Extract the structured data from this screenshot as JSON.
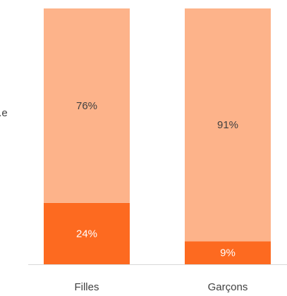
{
  "chart_data": {
    "type": "stacked-bar",
    "annotation": "t.e",
    "categories": [
      "Filles",
      "Garçons"
    ],
    "series": [
      {
        "name": null,
        "color": "#fd6a20",
        "label_color": "#ffffff",
        "values": [
          24,
          9
        ],
        "value_labels": [
          "24%",
          "9%"
        ]
      },
      {
        "name": null,
        "color": "#fdb38a",
        "label_color": "#404040",
        "values": [
          76,
          91
        ],
        "value_labels": [
          "76%",
          "91%"
        ]
      }
    ],
    "ylim": [
      0,
      100
    ]
  }
}
